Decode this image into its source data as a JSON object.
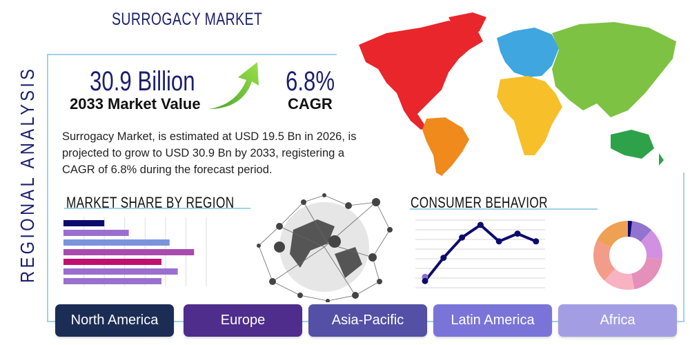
{
  "header": {
    "title": "SURROGACY MARKET",
    "side_label": "REGIONAL ANALYSIS"
  },
  "stats": {
    "market_value": "30.9 Billion",
    "market_value_label": "2033 Market Value",
    "cagr": "6.8%",
    "cagr_label": "CAGR",
    "trend_icon": "green-up-arrow-icon"
  },
  "description": "Surrogacy Market, is estimated at USD 19.5 Bn in 2026, is projected to grow to USD 30.9 Bn by 2033, registering a CAGR of 6.8% during the forecast period.",
  "sections": {
    "market_share_title": "MARKET SHARE BY REGION",
    "consumer_behavior_title": "CONSUMER BEHAVIOR"
  },
  "map_colors": {
    "north_america": "#e8262b",
    "south_america": "#f08a1d",
    "europe": "#3fa6e0",
    "asia": "#7dc242",
    "africa": "#f7c02a",
    "oceania": "#2ea24a"
  },
  "regions": [
    {
      "label": "North America",
      "color": "#1c2d55"
    },
    {
      "label": "Europe",
      "color": "#4f2d8c"
    },
    {
      "label": "Asia-Pacific",
      "color": "#5450a6"
    },
    {
      "label": "Latin America",
      "color": "#7a74d8"
    },
    {
      "label": "Africa",
      "color": "#a39ee3"
    }
  ],
  "chart_data": [
    {
      "type": "bar",
      "orientation": "horizontal",
      "values": [
        2,
        3.2,
        5.2,
        6.4,
        4.8,
        5.6,
        4.8
      ],
      "colors": [
        "#0d0a6e",
        "#9a6fcf",
        "#7b93dc",
        "#a94aae",
        "#c0106e",
        "#9a6fcf",
        "#9a6fcf"
      ],
      "xlim": [
        0,
        7
      ],
      "grid": true
    },
    {
      "type": "line",
      "values": [
        0.7,
        3.1,
        5.2,
        6.5,
        4.8,
        5.6,
        4.8
      ],
      "ylim": [
        0,
        7
      ],
      "grid": true,
      "color": "#0d0a6e"
    },
    {
      "type": "pie",
      "donut": true,
      "values": [
        2,
        10,
        15,
        20,
        15,
        20,
        18
      ],
      "colors": [
        "#0d0a6e",
        "#9273cf",
        "#d191e0",
        "#e58fbb",
        "#f8b3c3",
        "#f49c8a",
        "#eea055"
      ]
    }
  ]
}
